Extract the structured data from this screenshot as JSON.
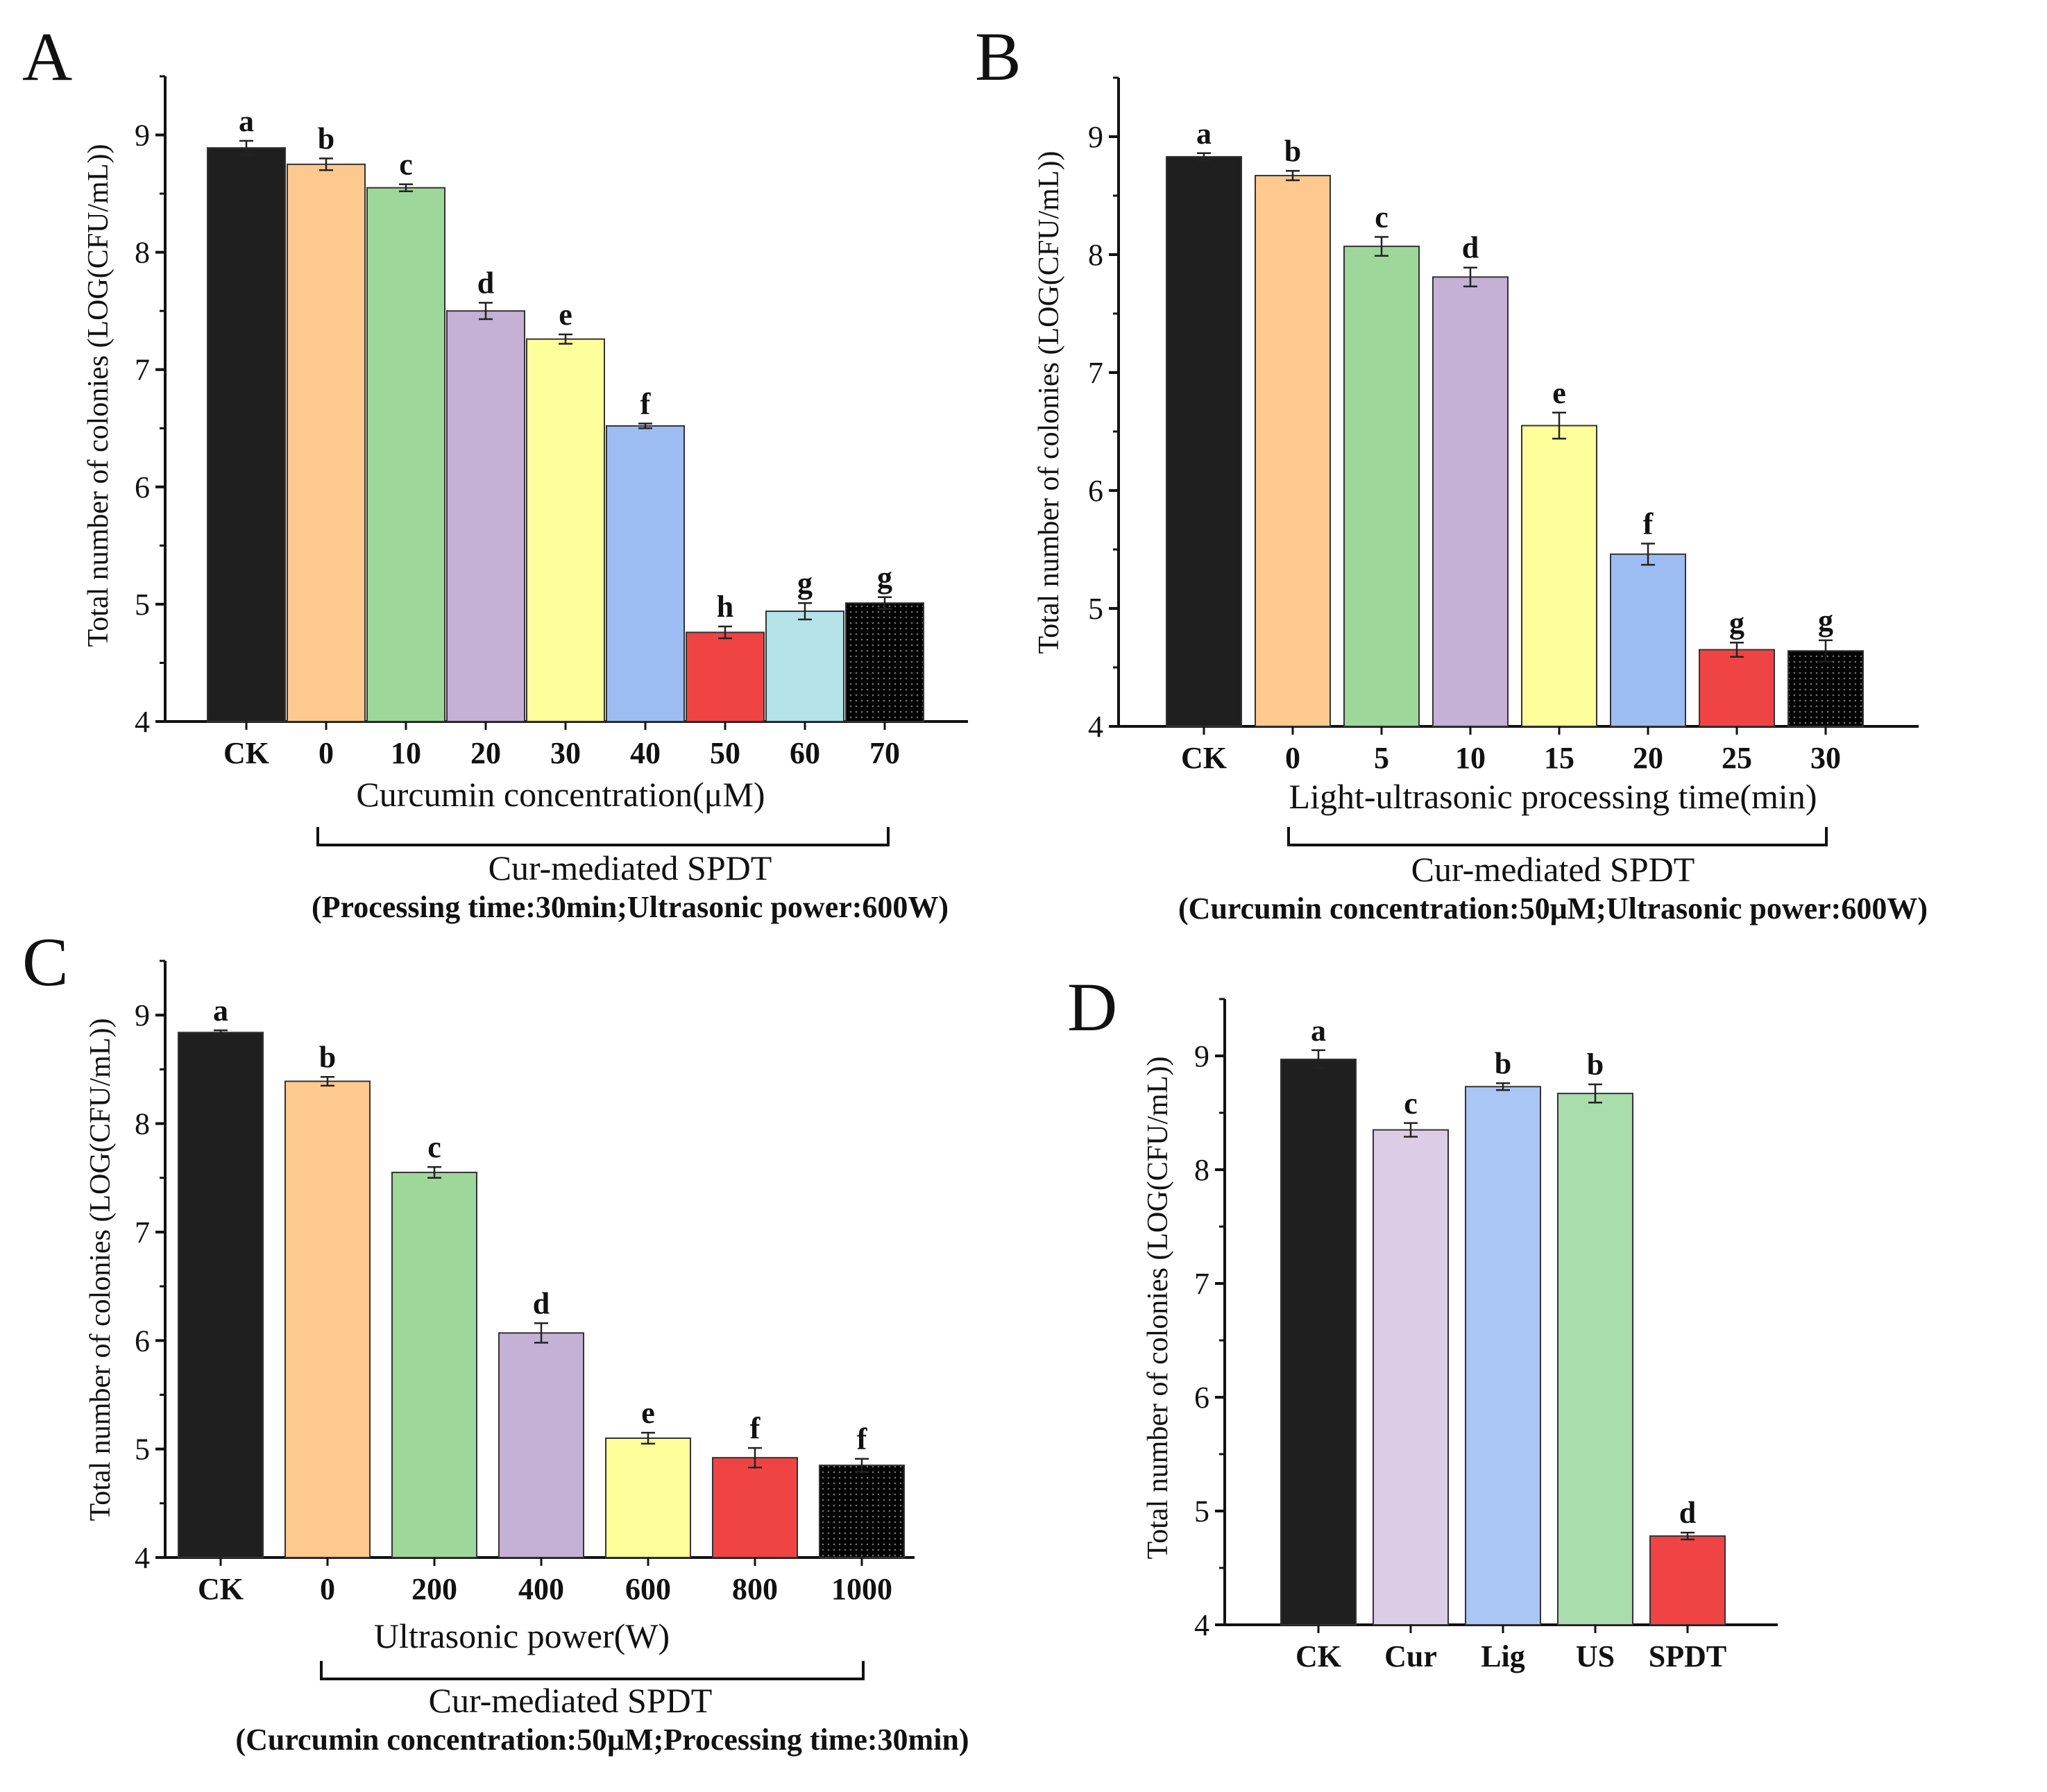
{
  "chart_data": [
    {
      "panel": "A",
      "type": "bar",
      "categories": [
        "CK",
        "0",
        "10",
        "20",
        "30",
        "40",
        "50",
        "60",
        "70"
      ],
      "values": [
        8.89,
        8.75,
        8.55,
        7.5,
        7.26,
        6.52,
        4.76,
        4.94,
        5.01
      ],
      "errors": [
        0.06,
        0.05,
        0.03,
        0.07,
        0.04,
        0.02,
        0.05,
        0.07,
        0.05
      ],
      "letters": [
        "a",
        "b",
        "c",
        "d",
        "e",
        "f",
        "h",
        "g",
        "g"
      ],
      "colors": [
        "#1f1f1f",
        "#fdc98e",
        "#9ed79a",
        "#c5b0d6",
        "#fefe9a",
        "#9dbdf2",
        "#f04444",
        "#b5e3ea",
        "#6b7a6b"
      ],
      "hatch": [
        false,
        false,
        false,
        false,
        false,
        false,
        false,
        false,
        true
      ],
      "xlabel": "Curcumin concentration(μM)",
      "ylabel": "Total number of colonies (LOG(CFU/mL))",
      "ylim": [
        4,
        9.5
      ],
      "yticks": [
        "4",
        "5",
        "6",
        "7",
        "8",
        "9"
      ],
      "group_label": "Cur-mediated SPDT",
      "condition": "(Processing time:30min;Ultrasonic power:600W)"
    },
    {
      "panel": "B",
      "type": "bar",
      "categories": [
        "CK",
        "0",
        "5",
        "10",
        "15",
        "20",
        "25",
        "30"
      ],
      "values": [
        8.83,
        8.67,
        8.07,
        7.81,
        6.55,
        5.46,
        4.65,
        4.64
      ],
      "errors": [
        0.03,
        0.04,
        0.08,
        0.08,
        0.11,
        0.09,
        0.06,
        0.09
      ],
      "letters": [
        "a",
        "b",
        "c",
        "d",
        "e",
        "f",
        "g",
        "g"
      ],
      "colors": [
        "#1f1f1f",
        "#fdc98e",
        "#9ed79a",
        "#c5b0d6",
        "#fefe9a",
        "#9dbdf2",
        "#f04444",
        "#8b1a1a"
      ],
      "hatch": [
        false,
        false,
        false,
        false,
        false,
        false,
        false,
        true
      ],
      "xlabel": "Light-ultrasonic processing time(min)",
      "ylabel": "Total number of colonies (LOG(CFU/mL))",
      "ylim": [
        4,
        9.5
      ],
      "yticks": [
        "4",
        "5",
        "6",
        "7",
        "8",
        "9"
      ],
      "group_label": "Cur-mediated SPDT",
      "condition": "(Curcumin concentration:50μM;Ultrasonic power:600W)"
    },
    {
      "panel": "C",
      "type": "bar",
      "categories": [
        "CK",
        "0",
        "200",
        "400",
        "600",
        "800",
        "1000"
      ],
      "values": [
        8.84,
        8.39,
        7.55,
        6.07,
        5.1,
        4.92,
        4.85
      ],
      "errors": [
        0.02,
        0.04,
        0.05,
        0.09,
        0.05,
        0.09,
        0.06
      ],
      "letters": [
        "a",
        "b",
        "c",
        "d",
        "e",
        "f",
        "f"
      ],
      "colors": [
        "#1f1f1f",
        "#fdc98e",
        "#9ed79a",
        "#c5b0d6",
        "#fefe9a",
        "#f04444",
        "#b02a2a"
      ],
      "hatch": [
        false,
        false,
        false,
        false,
        false,
        false,
        true
      ],
      "xlabel": "Ultrasonic power(W)",
      "ylabel": "Total number of colonies (LOG(CFU/mL))",
      "ylim": [
        4,
        9.5
      ],
      "yticks": [
        "4",
        "5",
        "6",
        "7",
        "8",
        "9"
      ],
      "group_label": "Cur-mediated SPDT",
      "condition": "(Curcumin concentration:50μM;Processing time:30min)"
    },
    {
      "panel": "D",
      "type": "bar",
      "categories": [
        "CK",
        "Cur",
        "Lig",
        "US",
        "SPDT"
      ],
      "values": [
        8.97,
        8.35,
        8.73,
        8.67,
        4.78
      ],
      "errors": [
        0.08,
        0.06,
        0.03,
        0.08,
        0.03
      ],
      "letters": [
        "a",
        "c",
        "b",
        "b",
        "d"
      ],
      "colors": [
        "#1f1f1f",
        "#dccde6",
        "#a9c6f5",
        "#a9ddab",
        "#f04444"
      ],
      "hatch": [
        false,
        false,
        false,
        false,
        false
      ],
      "xlabel": "",
      "ylabel": "Total number of colonies (LOG(CFU/mL))",
      "ylim": [
        4,
        9.5
      ],
      "yticks": [
        "4",
        "5",
        "6",
        "7",
        "8",
        "9"
      ]
    }
  ]
}
